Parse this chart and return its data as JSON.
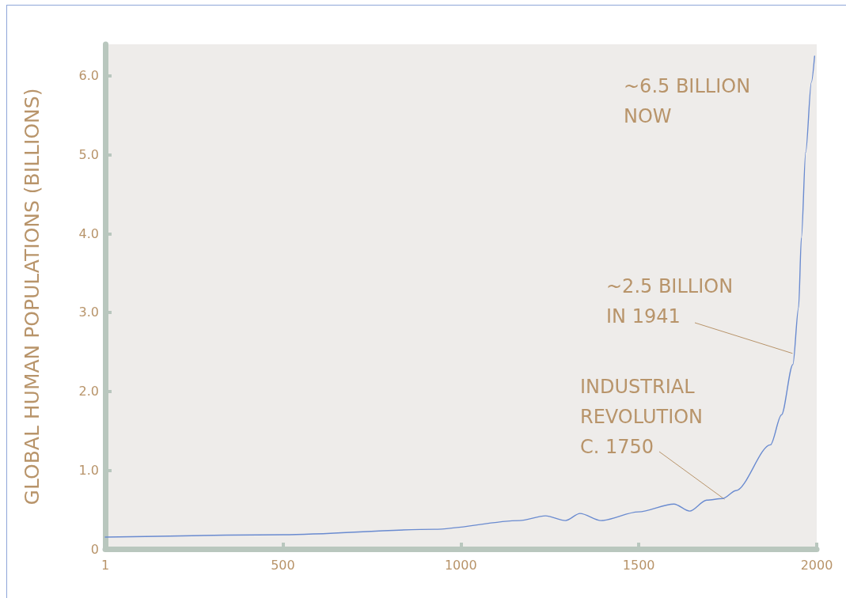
{
  "chart_data": {
    "type": "line",
    "ylabel": "GLOBAL HUMAN POPULATIONS (BILLIONS)",
    "x": [
      1,
      500,
      926,
      1165,
      1238,
      1294,
      1335,
      1394,
      1499,
      1599,
      1643,
      1691,
      1736,
      1773,
      1870,
      1901,
      1933,
      1949,
      1957,
      1969,
      1985,
      1994
    ],
    "series": [
      {
        "color": "#6a8bd0",
        "values": [
          0.15,
          0.18,
          0.25,
          0.36,
          0.42,
          0.36,
          0.45,
          0.36,
          0.47,
          0.57,
          0.48,
          0.62,
          0.64,
          0.74,
          1.32,
          1.7,
          2.34,
          3.06,
          3.95,
          5.03,
          5.92,
          6.25
        ]
      }
    ],
    "xlim": [
      1,
      2000
    ],
    "xticks": [
      1,
      500,
      1000,
      1500,
      2000
    ],
    "ylim": [
      0,
      6.4
    ],
    "yticks": [
      0,
      {
        "value": 1,
        "label": "1.0"
      },
      {
        "value": 2,
        "label": "2.0"
      },
      {
        "value": 3,
        "label": "3.0"
      },
      {
        "value": 4,
        "label": "4.0"
      },
      {
        "value": 5,
        "label": "5.0"
      },
      {
        "value": 6,
        "label": "6.0"
      }
    ],
    "grid": false,
    "marker": "none",
    "line_style": "solid",
    "annotations": [
      "~6.5 BILLION NOW",
      {
        "text": "~2.5 BILLION IN 1941",
        "x": 1941,
        "y": 2.5
      },
      {
        "text": "INDUSTRIAL REVOLUTION C. 1750",
        "x": 1750,
        "y": 0.65
      }
    ]
  }
}
